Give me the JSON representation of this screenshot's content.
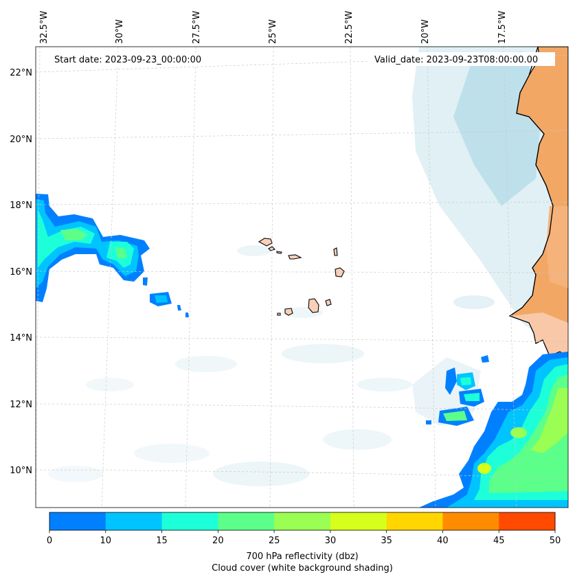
{
  "map": {
    "start_date": "Start date: 2023-09-23_00:00:00",
    "valid_date": "Valid_date: 2023-09-23T08:00:00.00",
    "lon_labels": [
      "32.5°W",
      "30°W",
      "27.5°W",
      "25°W",
      "22.5°W",
      "20°W",
      "17.5°W"
    ],
    "lat_labels": [
      "22°N",
      "20°N",
      "18°N",
      "16°N",
      "14°N",
      "12°N",
      "10°N"
    ],
    "colors": {
      "land": "#f2a765",
      "cloud": "#d6ebf2",
      "coast": "#000000",
      "grid": "#c8c8c8"
    }
  },
  "colorbar": {
    "ticks": [
      "0",
      "10",
      "15",
      "20",
      "25",
      "30",
      "35",
      "40",
      "45",
      "50"
    ],
    "colors": [
      "#0080ff",
      "#00c4ff",
      "#1dffd8",
      "#5cff8a",
      "#9aff52",
      "#d6ff1c",
      "#ffd600",
      "#ff8c00",
      "#ff4a00"
    ],
    "label_line1": "700 hPa reflectivity (dbz)",
    "label_line2": "Cloud cover (white background shading)"
  }
}
